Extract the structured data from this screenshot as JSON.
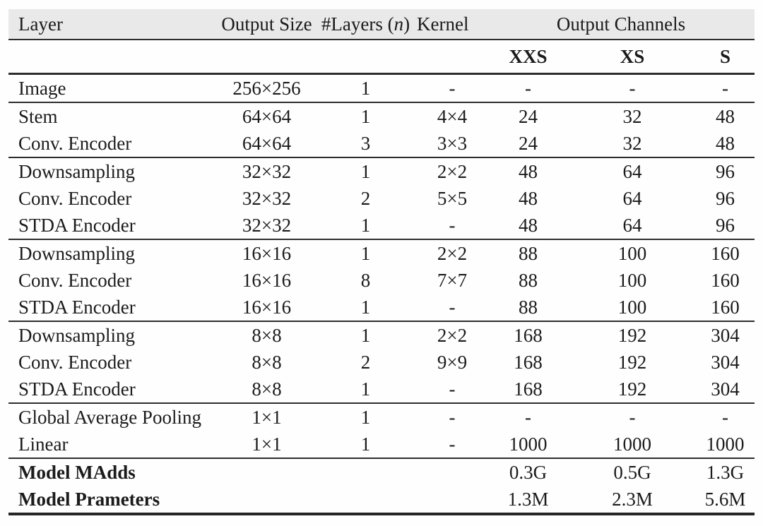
{
  "table": {
    "header": {
      "layer": "Layer",
      "output_size": "Output Size",
      "num_layers_prefix": "#Layers (",
      "num_layers_var": "n",
      "num_layers_suffix": ")",
      "kernel": "Kernel",
      "output_channels": "Output Channels",
      "variants": [
        "XXS",
        "XS",
        "S"
      ]
    },
    "colors": {
      "header_band": "#e9e9e9",
      "rule": "#2d2d2d",
      "text": "#1b1b1b",
      "background": "#fefefe"
    },
    "groups": [
      {
        "rows": [
          [
            "Image",
            "256×256",
            "1",
            "-",
            "-",
            "-",
            "-"
          ]
        ]
      },
      {
        "rows": [
          [
            "Stem",
            "64×64",
            "1",
            "4×4",
            "24",
            "32",
            "48"
          ],
          [
            "Conv. Encoder",
            "64×64",
            "3",
            "3×3",
            "24",
            "32",
            "48"
          ]
        ]
      },
      {
        "rows": [
          [
            "Downsampling",
            "32×32",
            "1",
            "2×2",
            "48",
            "64",
            "96"
          ],
          [
            "Conv. Encoder",
            "32×32",
            "2",
            "5×5",
            "48",
            "64",
            "96"
          ],
          [
            "STDA Encoder",
            "32×32",
            "1",
            "-",
            "48",
            "64",
            "96"
          ]
        ]
      },
      {
        "rows": [
          [
            "Downsampling",
            "16×16",
            "1",
            "2×2",
            "88",
            "100",
            "160"
          ],
          [
            "Conv. Encoder",
            "16×16",
            "8",
            "7×7",
            "88",
            "100",
            "160"
          ],
          [
            "STDA Encoder",
            "16×16",
            "1",
            "-",
            "88",
            "100",
            "160"
          ]
        ]
      },
      {
        "rows": [
          [
            "Downsampling",
            "8×8",
            "1",
            "2×2",
            "168",
            "192",
            "304"
          ],
          [
            "Conv. Encoder",
            "8×8",
            "2",
            "9×9",
            "168",
            "192",
            "304"
          ],
          [
            "STDA Encoder",
            "8×8",
            "1",
            "-",
            "168",
            "192",
            "304"
          ]
        ]
      },
      {
        "rows": [
          [
            "Global Average Pooling",
            "1×1",
            "1",
            "-",
            "-",
            "-",
            "-"
          ],
          [
            "Linear",
            "1×1",
            "1",
            "-",
            "1000",
            "1000",
            "1000"
          ]
        ]
      },
      {
        "bold_layer": true,
        "rows": [
          [
            "Model MAdds",
            "",
            "",
            "",
            "0.3G",
            "0.5G",
            "1.3G"
          ],
          [
            "Model Prameters",
            "",
            "",
            "",
            "1.3M",
            "2.3M",
            "5.6M"
          ]
        ]
      }
    ]
  }
}
